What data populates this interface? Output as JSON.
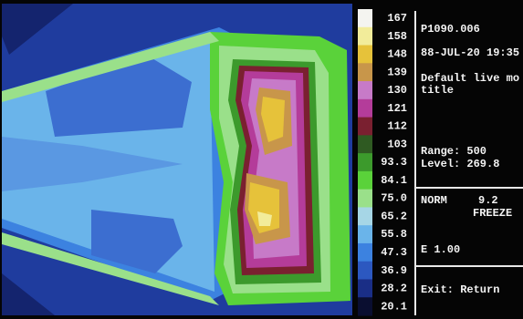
{
  "scale": [
    {
      "label": "167",
      "color": "#f4f4f0"
    },
    {
      "label": "158",
      "color": "#f2ec9a"
    },
    {
      "label": "148",
      "color": "#e6c23a"
    },
    {
      "label": "139",
      "color": "#c8964a"
    },
    {
      "label": "130",
      "color": "#c77ac8"
    },
    {
      "label": "121",
      "color": "#b43c9a"
    },
    {
      "label": "112",
      "color": "#7a2030"
    },
    {
      "label": "103",
      "color": "#2f5a22"
    },
    {
      "label": "93.3",
      "color": "#3c9a2c"
    },
    {
      "label": "84.1",
      "color": "#5ad23a"
    },
    {
      "label": "75.0",
      "color": "#9ae08a"
    },
    {
      "label": "65.2",
      "color": "#a6d6e6"
    },
    {
      "label": "55.8",
      "color": "#6ab4ea"
    },
    {
      "label": "47.3",
      "color": "#3c82e0"
    },
    {
      "label": "36.9",
      "color": "#2c58c0"
    },
    {
      "label": "28.2",
      "color": "#1a2e86"
    },
    {
      "label": "20.1",
      "color": "#0a0e30"
    }
  ],
  "panel": {
    "file": "P1090.006",
    "datetime": "88-JUL-20 19:35",
    "title_line1": "Default live mo",
    "title_line2": "title",
    "range": "Range: 500",
    "level": "Level: 269.8",
    "mode": "NORM",
    "number": "9.2",
    "state": "FREEZE",
    "emissivity": "E 1.00",
    "exit": "Exit: Return"
  }
}
